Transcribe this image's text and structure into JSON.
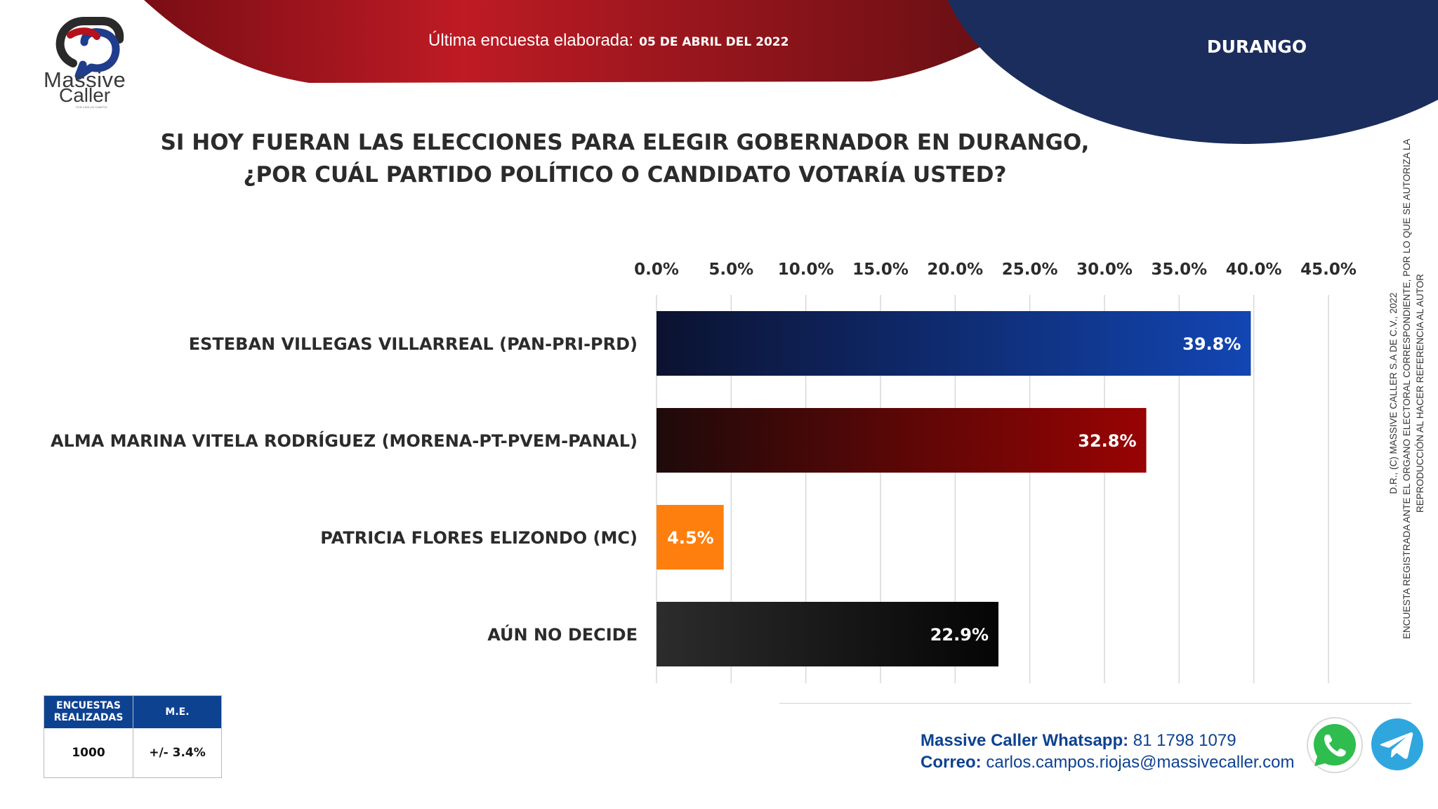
{
  "header": {
    "survey_label": "Última encuesta elaborada:",
    "survey_date": "05 DE ABRIL DEL 2022",
    "region": "DURANGO"
  },
  "logo": {
    "word1": "Massive",
    "word2": "Caller",
    "tagline": "POR CARLOS CAMPOS"
  },
  "question": {
    "line1": "SI HOY FUERAN LAS ELECCIONES PARA ELEGIR GOBERNADOR EN DURANGO,",
    "line2": "¿POR CUÁL PARTIDO POLÍTICO O CANDIDATO VOTARÍA USTED?"
  },
  "chart_data": {
    "type": "bar",
    "orientation": "horizontal",
    "categories": [
      "ESTEBAN VILLEGAS VILLARREAL (PAN-PRI-PRD)",
      "ALMA MARINA VITELA RODRÍGUEZ (MORENA-PT-PVEM-PANAL)",
      "PATRICIA FLORES ELIZONDO (MC)",
      "AÚN NO DECIDE"
    ],
    "values": [
      39.8,
      32.8,
      4.5,
      22.9
    ],
    "data_labels": [
      "39.8%",
      "32.8%",
      "4.5%",
      "22.9%"
    ],
    "xlim": [
      0,
      45
    ],
    "x_ticks": [
      0,
      5,
      10,
      15,
      20,
      25,
      30,
      35,
      40,
      45
    ],
    "x_tick_labels": [
      "0.0%",
      "5.0%",
      "10.0%",
      "15.0%",
      "20.0%",
      "25.0%",
      "30.0%",
      "35.0%",
      "40.0%",
      "45.0%"
    ],
    "axis_position": "top",
    "grid": true,
    "bar_colors": [
      [
        "#0c1230",
        "#1246b3"
      ],
      [
        "#1e0a0a",
        "#990303"
      ],
      [
        "#ff7f0e",
        "#ff7f0e"
      ],
      [
        "#2c2c2c",
        "#050505"
      ]
    ]
  },
  "side_note": {
    "line1": "D.R., (C) MASSIVE CALLER S.A DE C.V., 2022",
    "line2": "ENCUESTA REGISTRADA ANTE EL ORGANO ELECTORAL CORRESPONDIENTE, POR LO QUE SE AUTORIZA LA",
    "line3": "REPRODUCCIÓN AL HACER REFERENCIA AL AUTOR"
  },
  "stats": {
    "col1_header": "ENCUESTAS REALIZADAS",
    "col2_header": "M.E.",
    "col1_value": "1000",
    "col2_value": "+/- 3.4%"
  },
  "contact": {
    "whatsapp_label": "Massive Caller Whatsapp:",
    "whatsapp_number": "81 1798 1079",
    "email_label": "Correo:",
    "email": "carlos.campos.riojas@massivecaller.com"
  },
  "icons": {
    "whatsapp": "whatsapp-icon",
    "telegram": "telegram-icon"
  },
  "colors": {
    "accent_red": "#b5121b",
    "accent_navy": "#1b2d5c",
    "table_header": "#0d4291",
    "contact_blue": "#0d4291"
  }
}
